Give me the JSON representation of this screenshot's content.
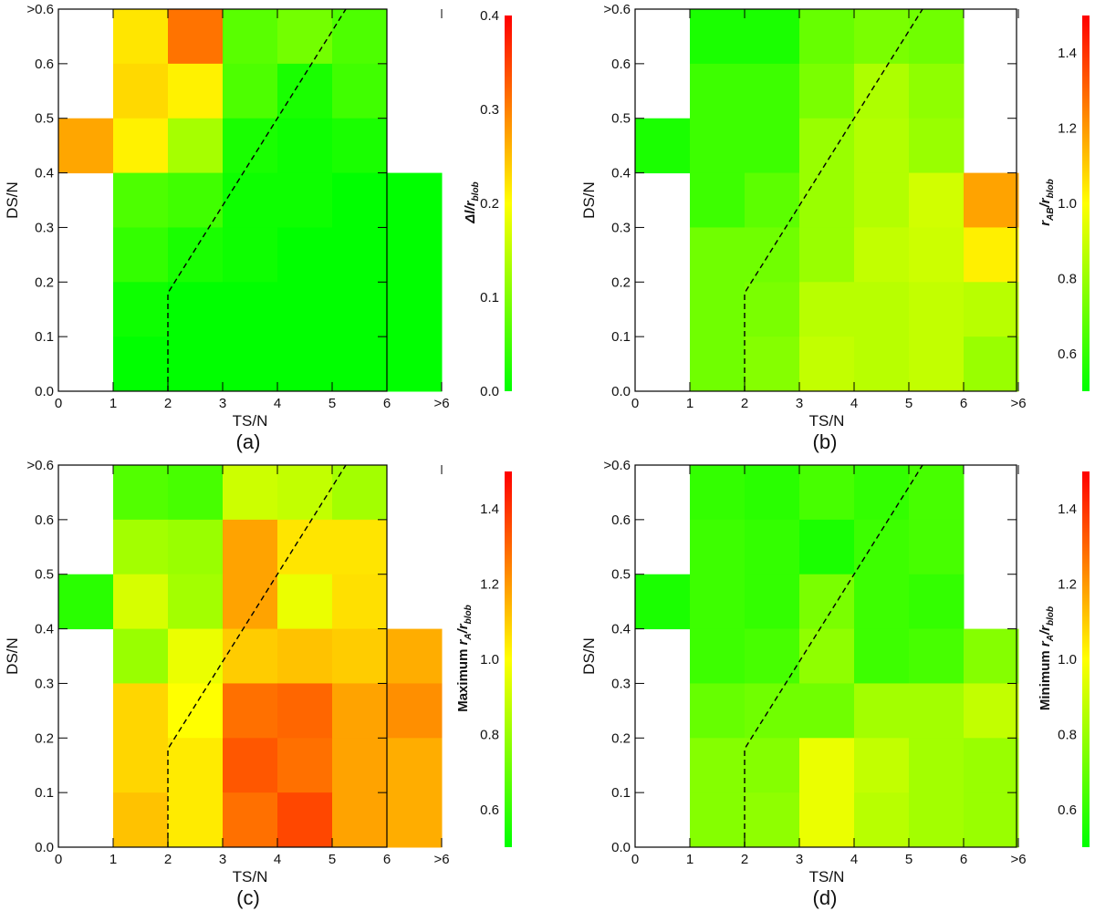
{
  "chart_data": [
    {
      "type": "heatmap",
      "panel_label": "(a)",
      "xlabel": "TS/N",
      "ylabel": "DS/N",
      "x_ticks": [
        "0",
        "1",
        "2",
        "3",
        "4",
        "5",
        "6",
        ">6"
      ],
      "y_ticks": [
        "0.0",
        "0.1",
        "0.2",
        "0.3",
        "0.4",
        "0.5",
        "0.6",
        ">0.6"
      ],
      "colorbar": {
        "label_main": "Δl/r",
        "label_sub": "blob",
        "label_prefix": "",
        "range": [
          0.0,
          0.4
        ],
        "ticks": [
          "0.0",
          "0.1",
          "0.2",
          "0.3",
          "0.4"
        ]
      },
      "dashed_line": [
        [
          2,
          0
        ],
        [
          2,
          0.18
        ],
        [
          5.25,
          0.7
        ]
      ],
      "rows_top_to_bottom": [
        [
          null,
          0.22,
          0.31,
          0.07,
          0.09,
          0.06,
          null
        ],
        [
          null,
          0.23,
          0.21,
          0.06,
          0.02,
          0.05,
          null
        ],
        [
          0.27,
          0.21,
          0.13,
          0.02,
          0.01,
          0.02,
          null
        ],
        [
          null,
          0.06,
          0.05,
          0.01,
          0.01,
          0.0,
          0.0
        ],
        [
          null,
          0.04,
          0.02,
          0.01,
          0.0,
          0.0,
          0.0
        ],
        [
          null,
          0.01,
          0.0,
          0.0,
          0.0,
          0.0,
          0.0
        ],
        [
          null,
          0.0,
          0.0,
          0.0,
          0.0,
          0.0,
          0.0
        ]
      ]
    },
    {
      "type": "heatmap",
      "panel_label": "(b)",
      "xlabel": "TS/N",
      "ylabel": "DS/N",
      "x_ticks": [
        "0",
        "1",
        "2",
        "3",
        "4",
        "5",
        "6",
        ">6"
      ],
      "y_ticks": [
        "0.0",
        "0.1",
        "0.2",
        "0.3",
        "0.4",
        "0.5",
        "0.6",
        ">0.6"
      ],
      "colorbar": {
        "label_main": "r",
        "label_mid": "/r",
        "label_sub1": "AB",
        "label_sub": "blob",
        "label_prefix": "",
        "range": [
          0.5,
          1.5
        ],
        "ticks": [
          "0.6",
          "0.8",
          "1.0",
          "1.2",
          "1.4"
        ]
      },
      "dashed_line": [
        [
          2,
          0
        ],
        [
          2,
          0.18
        ],
        [
          5.25,
          0.7
        ]
      ],
      "rows_top_to_bottom": [
        [
          null,
          0.55,
          0.55,
          0.7,
          0.74,
          0.72,
          null
        ],
        [
          null,
          0.62,
          0.62,
          0.74,
          0.84,
          0.78,
          null
        ],
        [
          0.55,
          0.62,
          0.62,
          0.8,
          0.85,
          0.8,
          null
        ],
        [
          null,
          0.62,
          0.68,
          0.8,
          0.85,
          0.91,
          1.18
        ],
        [
          null,
          0.72,
          0.72,
          0.8,
          0.88,
          0.9,
          1.03
        ],
        [
          null,
          0.72,
          0.74,
          0.86,
          0.86,
          0.88,
          0.86
        ],
        [
          null,
          0.72,
          0.76,
          0.88,
          0.86,
          0.88,
          0.8
        ]
      ]
    },
    {
      "type": "heatmap",
      "panel_label": "(c)",
      "xlabel": "TS/N",
      "ylabel": "DS/N",
      "x_ticks": [
        "0",
        "1",
        "2",
        "3",
        "4",
        "5",
        "6",
        ">6"
      ],
      "y_ticks": [
        "0.0",
        "0.1",
        "0.2",
        "0.3",
        "0.4",
        "0.5",
        "0.6",
        ">0.6"
      ],
      "colorbar": {
        "label_main": "r",
        "label_mid": "/r",
        "label_sub1": "A",
        "label_sub": "blob",
        "label_prefix": "Maximum",
        "range": [
          0.5,
          1.5
        ],
        "ticks": [
          "0.6",
          "0.8",
          "1.0",
          "1.2",
          "1.4"
        ]
      },
      "dashed_line": [
        [
          2,
          0
        ],
        [
          2,
          0.18
        ],
        [
          5.25,
          0.7
        ]
      ],
      "rows_top_to_bottom": [
        [
          null,
          0.66,
          0.64,
          0.9,
          0.88,
          0.82,
          null
        ],
        [
          null,
          0.82,
          0.8,
          1.18,
          1.05,
          1.05,
          null
        ],
        [
          0.58,
          0.92,
          0.82,
          1.18,
          0.96,
          1.06,
          null
        ],
        [
          null,
          0.8,
          0.96,
          1.1,
          1.12,
          1.1,
          1.16
        ],
        [
          null,
          1.08,
          1.0,
          1.28,
          1.3,
          1.18,
          1.22
        ],
        [
          null,
          1.08,
          1.04,
          1.33,
          1.28,
          1.18,
          1.16
        ],
        [
          null,
          1.12,
          1.04,
          1.28,
          1.36,
          1.18,
          1.16
        ]
      ]
    },
    {
      "type": "heatmap",
      "panel_label": "(d)",
      "xlabel": "TS/N",
      "ylabel": "DS/N",
      "x_ticks": [
        "0",
        "1",
        "2",
        "3",
        "4",
        "5",
        "6",
        ">6"
      ],
      "y_ticks": [
        "0.0",
        "0.1",
        "0.2",
        "0.3",
        "0.4",
        "0.5",
        "0.6",
        ">0.6"
      ],
      "colorbar": {
        "label_main": "r",
        "label_mid": "/r",
        "label_sub1": "A",
        "label_sub": "blob",
        "label_prefix": "Minimum",
        "range": [
          0.5,
          1.5
        ],
        "ticks": [
          "0.6",
          "0.8",
          "1.0",
          "1.2",
          "1.4"
        ]
      },
      "dashed_line": [
        [
          2,
          0
        ],
        [
          2,
          0.18
        ],
        [
          5.25,
          0.7
        ]
      ],
      "rows_top_to_bottom": [
        [
          null,
          0.6,
          0.58,
          0.64,
          0.6,
          0.64,
          null
        ],
        [
          null,
          0.62,
          0.6,
          0.55,
          0.62,
          0.64,
          null
        ],
        [
          0.55,
          0.62,
          0.6,
          0.74,
          0.62,
          0.6,
          null
        ],
        [
          null,
          0.62,
          0.64,
          0.78,
          0.62,
          0.64,
          0.76
        ],
        [
          null,
          0.7,
          0.72,
          0.72,
          0.82,
          0.82,
          0.88
        ],
        [
          null,
          0.76,
          0.76,
          0.96,
          0.88,
          0.82,
          0.8
        ],
        [
          null,
          0.76,
          0.78,
          0.96,
          0.86,
          0.82,
          0.8
        ]
      ]
    }
  ]
}
